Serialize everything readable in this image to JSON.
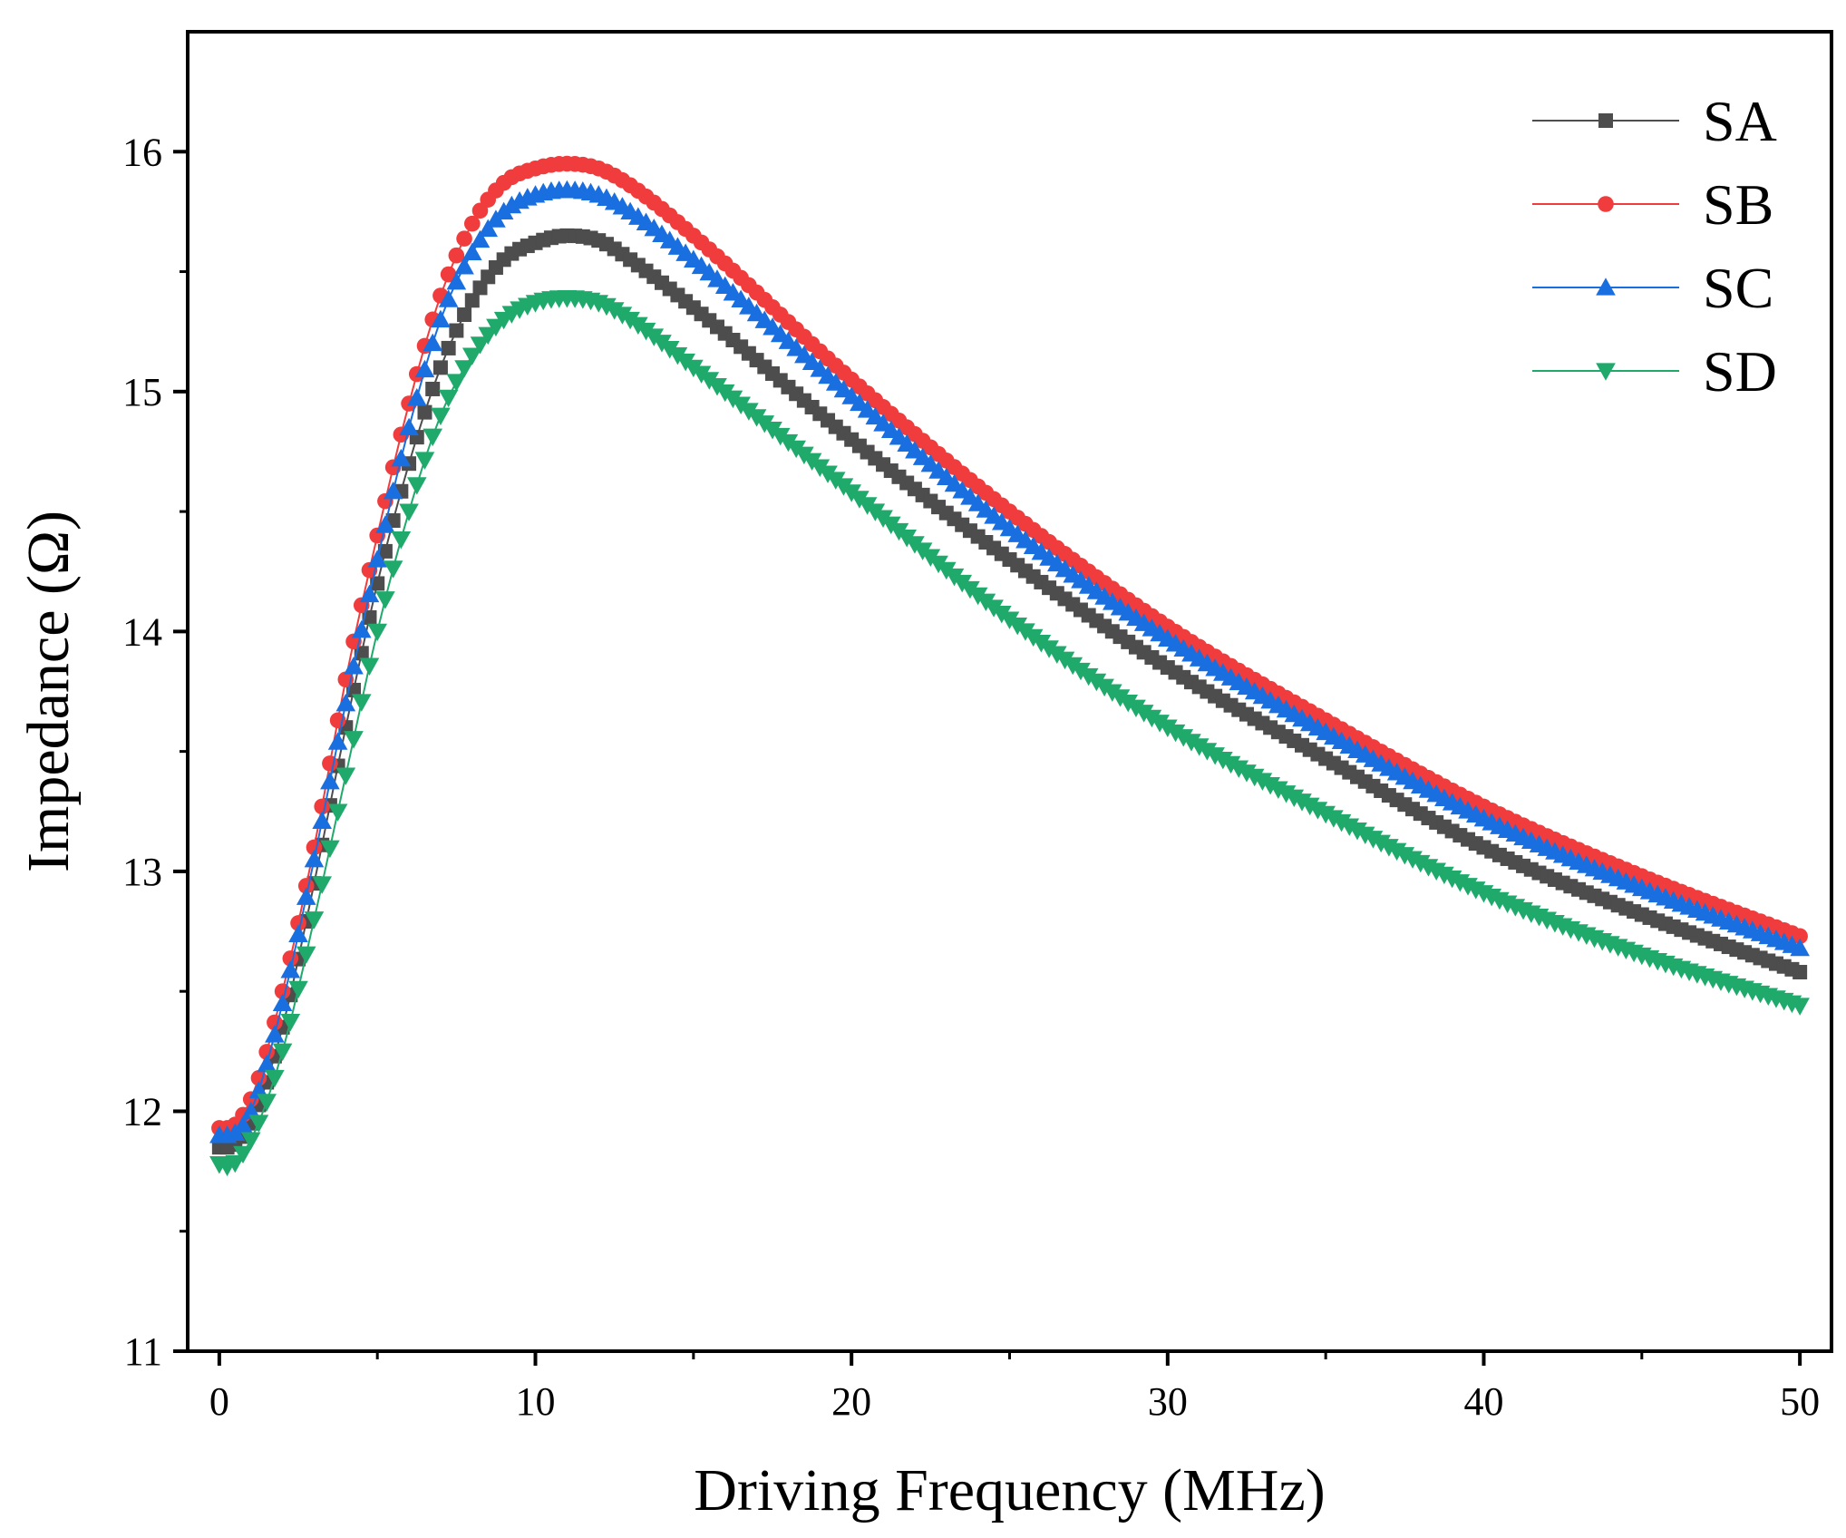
{
  "chart_data": {
    "type": "scatter",
    "title": "",
    "xlabel": "Driving Frequency (MHz)",
    "ylabel": "Impedance (Ω)",
    "xlim": [
      -1,
      51
    ],
    "ylim": [
      11,
      16.5
    ],
    "xticks": [
      0,
      10,
      20,
      30,
      40,
      50
    ],
    "yticks": [
      11,
      12,
      13,
      14,
      15,
      16
    ],
    "x_minor_step": 5,
    "y_minor_step": 0.5,
    "grid": false,
    "legend_position": "top-right",
    "x_start": 0,
    "x_end": 50,
    "x_step": 0.25,
    "series": [
      {
        "name": "SA",
        "color": "#4d4d4d",
        "marker": "square",
        "key_points": [
          [
            0,
            11.85
          ],
          [
            0.25,
            11.85
          ],
          [
            1,
            11.95
          ],
          [
            2,
            12.35
          ],
          [
            3,
            12.95
          ],
          [
            4,
            13.6
          ],
          [
            5,
            14.2
          ],
          [
            6,
            14.7
          ],
          [
            7,
            15.1
          ],
          [
            8,
            15.38
          ],
          [
            9,
            15.55
          ],
          [
            10,
            15.62
          ],
          [
            11,
            15.65
          ],
          [
            12,
            15.63
          ],
          [
            13,
            15.55
          ],
          [
            15,
            15.35
          ],
          [
            20,
            14.8
          ],
          [
            25,
            14.3
          ],
          [
            30,
            13.85
          ],
          [
            35,
            13.47
          ],
          [
            40,
            13.1
          ],
          [
            45,
            12.82
          ],
          [
            50,
            12.58
          ]
        ]
      },
      {
        "name": "SB",
        "color": "#f03c3c",
        "marker": "circle",
        "key_points": [
          [
            0,
            11.93
          ],
          [
            0.25,
            11.93
          ],
          [
            1,
            12.05
          ],
          [
            2,
            12.5
          ],
          [
            3,
            13.1
          ],
          [
            4,
            13.8
          ],
          [
            5,
            14.4
          ],
          [
            6,
            14.95
          ],
          [
            7,
            15.4
          ],
          [
            8,
            15.7
          ],
          [
            9,
            15.87
          ],
          [
            10,
            15.93
          ],
          [
            11,
            15.95
          ],
          [
            12,
            15.93
          ],
          [
            13,
            15.86
          ],
          [
            15,
            15.65
          ],
          [
            20,
            15.05
          ],
          [
            25,
            14.5
          ],
          [
            30,
            14.02
          ],
          [
            35,
            13.63
          ],
          [
            40,
            13.27
          ],
          [
            45,
            12.98
          ],
          [
            50,
            12.73
          ]
        ]
      },
      {
        "name": "SC",
        "color": "#1a6fe0",
        "marker": "triangle-up",
        "key_points": [
          [
            0,
            11.9
          ],
          [
            0.25,
            11.9
          ],
          [
            1,
            12.0
          ],
          [
            2,
            12.45
          ],
          [
            3,
            13.05
          ],
          [
            4,
            13.7
          ],
          [
            5,
            14.3
          ],
          [
            6,
            14.85
          ],
          [
            7,
            15.3
          ],
          [
            8,
            15.58
          ],
          [
            9,
            15.75
          ],
          [
            10,
            15.82
          ],
          [
            11,
            15.84
          ],
          [
            12,
            15.82
          ],
          [
            13,
            15.75
          ],
          [
            15,
            15.55
          ],
          [
            20,
            14.98
          ],
          [
            25,
            14.43
          ],
          [
            30,
            13.97
          ],
          [
            35,
            13.58
          ],
          [
            40,
            13.22
          ],
          [
            45,
            12.93
          ],
          [
            50,
            12.68
          ]
        ]
      },
      {
        "name": "SD",
        "color": "#1faa6b",
        "marker": "triangle-down",
        "key_points": [
          [
            0,
            11.78
          ],
          [
            0.25,
            11.77
          ],
          [
            1,
            11.88
          ],
          [
            2,
            12.25
          ],
          [
            3,
            12.8
          ],
          [
            4,
            13.4
          ],
          [
            5,
            14.0
          ],
          [
            6,
            14.5
          ],
          [
            7,
            14.9
          ],
          [
            8,
            15.15
          ],
          [
            9,
            15.3
          ],
          [
            10,
            15.37
          ],
          [
            11,
            15.39
          ],
          [
            12,
            15.37
          ],
          [
            13,
            15.3
          ],
          [
            15,
            15.1
          ],
          [
            20,
            14.58
          ],
          [
            25,
            14.05
          ],
          [
            30,
            13.6
          ],
          [
            35,
            13.24
          ],
          [
            40,
            12.91
          ],
          [
            45,
            12.65
          ],
          [
            50,
            12.44
          ]
        ]
      }
    ]
  }
}
